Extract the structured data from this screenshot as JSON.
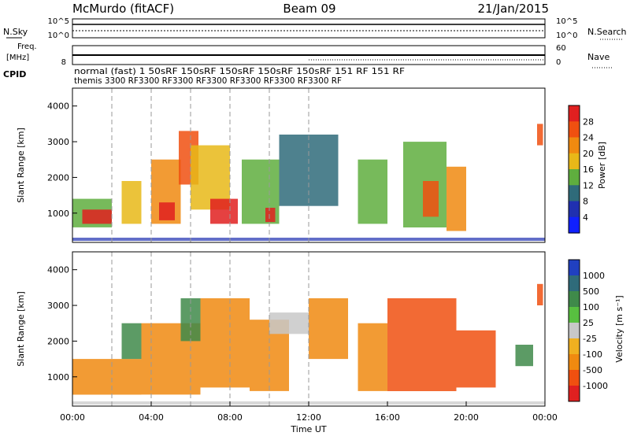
{
  "header": {
    "station": "McMurdo (fitACF)",
    "beam": "Beam 09",
    "date": "21/Jan/2015"
  },
  "noise_panel": {
    "left_label": "N.Sky",
    "right_label": "N.Search",
    "y_top": "10^5",
    "y_bottom": "10^0",
    "right_top": "10^5",
    "right_bottom": "10^0"
  },
  "freq_panel": {
    "left_label_1": "Freq.",
    "left_label_2": "[MHz]",
    "left_tick_top": "",
    "left_tick_bottom": "8",
    "right_label": "Nave",
    "right_tick_top": "60",
    "right_tick_bottom": "0"
  },
  "cpid": {
    "label": "CPID",
    "line1": "normal (fast) 1 50sRF 150sRF 150sRF 150sRF 150sRF 151 RF 151 RF",
    "line2": "themis 3300 RF3300 RF3300 RF3300 RF3300 RF3300 RF3300 RF"
  },
  "power_panel": {
    "ylabel": "Slant Range [km]",
    "colorbar_label": "Power [dB]",
    "colorbar_ticks": [
      "28",
      "24",
      "20",
      "16",
      "12",
      "8",
      "4"
    ],
    "colorbar_colors": [
      "#e02020",
      "#f05010",
      "#f08a10",
      "#e8b818",
      "#5fae3e",
      "#2f6b7a",
      "#2030b0",
      "#1020ff"
    ]
  },
  "velocity_panel": {
    "ylabel": "Slant Range [km]",
    "colorbar_label": "Velocity [m s⁻¹]",
    "colorbar_ticks": [
      "1000",
      "500",
      "100",
      "25",
      "-25",
      "-100",
      "-500",
      "-1000"
    ],
    "colorbar_colors": [
      "#2040c0",
      "#2f6b7a",
      "#3f8a4a",
      "#58c040",
      "#c8c8c8",
      "#f0b020",
      "#f08a10",
      "#f05010",
      "#e02020"
    ]
  },
  "x_axis": {
    "label": "Time UT",
    "ticks": [
      "00:00",
      "04:00",
      "08:00",
      "12:00",
      "16:00",
      "20:00",
      "00:00"
    ]
  },
  "chart_data": {
    "type": "heatmap",
    "title": "McMurdo (fitACF) Beam 09 21/Jan/2015",
    "xlabel": "Time UT",
    "ylabel": "Slant Range [km]",
    "xlim": [
      "00:00",
      "24:00"
    ],
    "ylim": [
      180,
      4500
    ],
    "y_ticks": [
      1000,
      2000,
      3000,
      4000
    ],
    "x_ticks_hours": [
      0,
      4,
      8,
      12,
      16,
      20,
      24
    ],
    "mode_change_times_hours": [
      2,
      4,
      6,
      8,
      10,
      12
    ],
    "power_regions_db": [
      {
        "t": [
          0.0,
          2.0
        ],
        "range": [
          600,
          1400
        ],
        "value": 12
      },
      {
        "t": [
          0.5,
          2.0
        ],
        "range": [
          700,
          1100
        ],
        "value": 26
      },
      {
        "t": [
          2.5,
          3.5
        ],
        "range": [
          700,
          1900
        ],
        "value": 14
      },
      {
        "t": [
          4.0,
          5.5
        ],
        "range": [
          700,
          2500
        ],
        "value": 20
      },
      {
        "t": [
          4.4,
          5.2
        ],
        "range": [
          800,
          1300
        ],
        "value": 28
      },
      {
        "t": [
          5.4,
          6.4
        ],
        "range": [
          1800,
          3300
        ],
        "value": 22
      },
      {
        "t": [
          6.0,
          8.0
        ],
        "range": [
          1100,
          2900
        ],
        "value": 14
      },
      {
        "t": [
          7.0,
          8.4
        ],
        "range": [
          700,
          1400
        ],
        "value": 28
      },
      {
        "t": [
          8.6,
          10.5
        ],
        "range": [
          700,
          2500
        ],
        "value": 10
      },
      {
        "t": [
          9.8,
          10.3
        ],
        "range": [
          750,
          1150
        ],
        "value": 26
      },
      {
        "t": [
          10.5,
          13.5
        ],
        "range": [
          1200,
          3200
        ],
        "value": 8
      },
      {
        "t": [
          14.5,
          16.0
        ],
        "range": [
          700,
          2500
        ],
        "value": 10
      },
      {
        "t": [
          16.8,
          19.0
        ],
        "range": [
          600,
          3000
        ],
        "value": 12
      },
      {
        "t": [
          17.8,
          18.6
        ],
        "range": [
          900,
          1900
        ],
        "value": 22
      },
      {
        "t": [
          19.0,
          20.0
        ],
        "range": [
          500,
          2300
        ],
        "value": 20
      },
      {
        "t": [
          23.6,
          23.9
        ],
        "range": [
          2900,
          3500
        ],
        "value": 24
      }
    ],
    "velocity_regions_ms": [
      {
        "t": [
          0.0,
          3.5
        ],
        "range": [
          500,
          1500
        ],
        "value": -300
      },
      {
        "t": [
          2.5,
          3.5
        ],
        "range": [
          1500,
          2500
        ],
        "value": 100
      },
      {
        "t": [
          3.5,
          6.5
        ],
        "range": [
          500,
          2500
        ],
        "value": -200
      },
      {
        "t": [
          5.5,
          6.5
        ],
        "range": [
          2000,
          3200
        ],
        "value": 200
      },
      {
        "t": [
          6.5,
          9.0
        ],
        "range": [
          700,
          3200
        ],
        "value": -300
      },
      {
        "t": [
          9.0,
          11.0
        ],
        "range": [
          600,
          2600
        ],
        "value": -200
      },
      {
        "t": [
          10.0,
          12.0
        ],
        "range": [
          2200,
          2800
        ],
        "value": 0
      },
      {
        "t": [
          12.0,
          14.0
        ],
        "range": [
          1500,
          3200
        ],
        "value": -200
      },
      {
        "t": [
          14.5,
          16.0
        ],
        "range": [
          600,
          2500
        ],
        "value": -100
      },
      {
        "t": [
          16.0,
          19.5
        ],
        "range": [
          600,
          3200
        ],
        "value": -500
      },
      {
        "t": [
          19.5,
          21.5
        ],
        "range": [
          700,
          2300
        ],
        "value": -500
      },
      {
        "t": [
          22.5,
          23.4
        ],
        "range": [
          1300,
          1900
        ],
        "value": 200
      },
      {
        "t": [
          23.6,
          23.9
        ],
        "range": [
          3000,
          3600
        ],
        "value": -600
      }
    ]
  }
}
